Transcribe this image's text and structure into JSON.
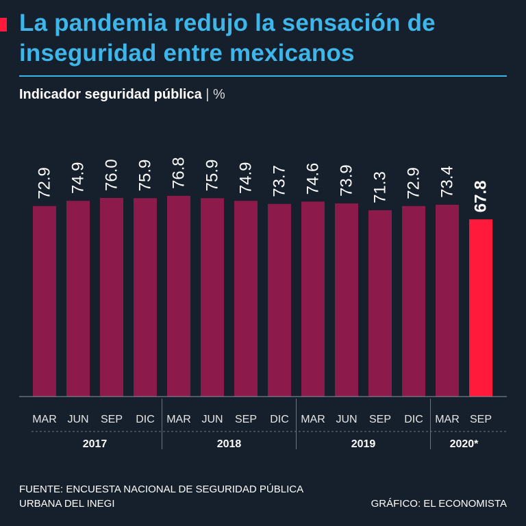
{
  "title": "La pandemia redujo la sensación de inseguridad entre mexicanos",
  "subtitle": "Indicador seguridad pública",
  "unit_label": "| %",
  "source": "FUENTE: ENCUESTA NACIONAL DE SEGURIDAD PÚBLICA URBANA DEL INEGI",
  "credit": "GRÁFICO: EL ECONOMISTA",
  "colors": {
    "title": "#3fb6ea",
    "bar": "#8c1a4a",
    "highlight": "#ff1a3c",
    "background": "#161f2c"
  },
  "chart_data": {
    "type": "bar",
    "title": "Indicador seguridad pública",
    "ylabel": "%",
    "ylim": [
      0,
      80
    ],
    "categories": [
      "MAR",
      "JUN",
      "SEP",
      "DIC",
      "MAR",
      "JUN",
      "SEP",
      "DIC",
      "MAR",
      "JUN",
      "SEP",
      "DIC",
      "MAR",
      "SEP"
    ],
    "values": [
      72.9,
      74.9,
      76.0,
      75.9,
      76.8,
      75.9,
      74.9,
      73.7,
      74.6,
      73.9,
      71.3,
      72.9,
      73.4,
      67.8
    ],
    "value_labels": [
      "72.9",
      "74.9",
      "76.0",
      "75.9",
      "76.8",
      "75.9",
      "74.9",
      "73.7",
      "74.6",
      "73.9",
      "71.3",
      "72.9",
      "73.4",
      "67.8"
    ],
    "highlight_index": 13,
    "years": [
      {
        "label": "2017",
        "count": 4
      },
      {
        "label": "2018",
        "count": 4
      },
      {
        "label": "2019",
        "count": 4
      },
      {
        "label": "2020*",
        "count": 2
      }
    ]
  }
}
